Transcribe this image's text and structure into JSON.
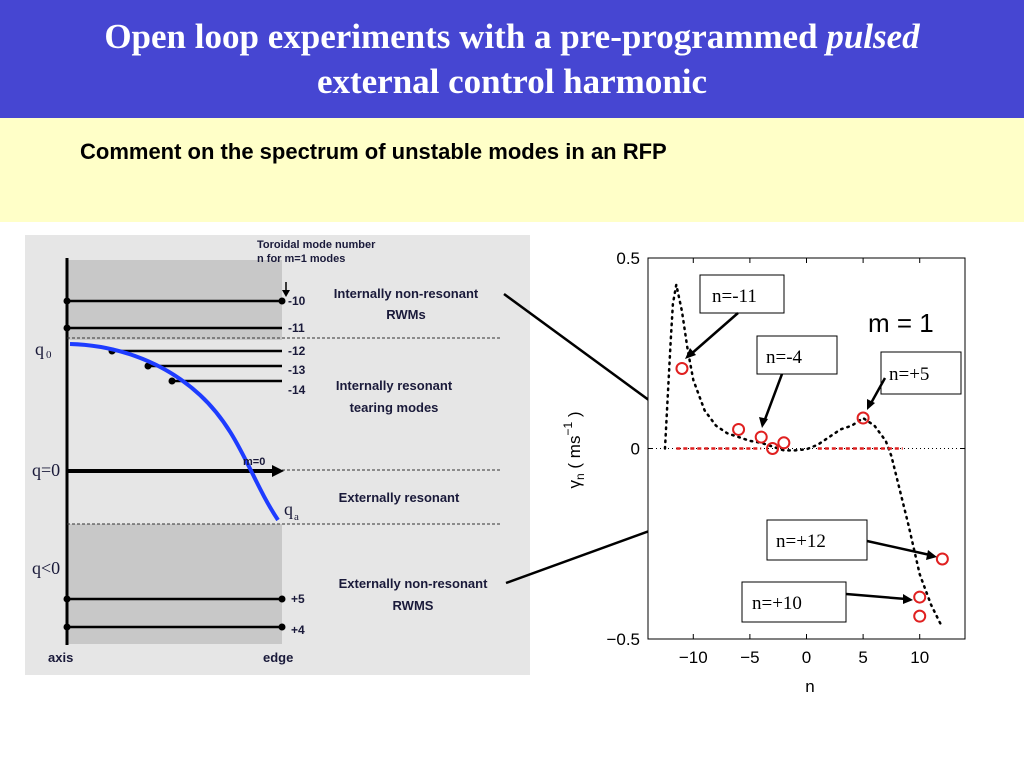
{
  "slide": {
    "title_line1_prefix": "Open loop experiments with a pre-programmed ",
    "title_line1_emph": "pulsed",
    "title_line2": "external control harmonic",
    "subtitle": "Comment on the spectrum of unstable modes in an RFP"
  },
  "left_diagram": {
    "header_line1": "Toroidal mode number",
    "header_line2": "n for m=1 modes",
    "mode_numbers": [
      "-10",
      "-11",
      "-12",
      "-13",
      "-14",
      "+5",
      "+4"
    ],
    "q_labels": {
      "q0": "q",
      "q0_sub": "0",
      "q_eq0": "q=0",
      "q_lt0": "q<0",
      "qa": "q",
      "qa_sub": "a",
      "m0": "m=0"
    },
    "regions": [
      {
        "line1": "Internally non-resonant",
        "line2": "RWMs"
      },
      {
        "line1": "Internally resonant",
        "line2": "tearing modes"
      },
      {
        "line1": "Externally resonant",
        "line2": ""
      },
      {
        "line1": "Externally non-resonant",
        "line2": "RWMS"
      }
    ],
    "axis_label": "axis",
    "edge_label": "edge",
    "colors": {
      "shade": "#c8c8c8",
      "curve": "#1e3cff",
      "text": "#1a1a3a"
    }
  },
  "chart_data": {
    "type": "scatter",
    "title": "m = 1",
    "xlabel": "n",
    "ylabel": "γ_n ( ms^-1 )",
    "xlim": [
      -14,
      14
    ],
    "ylim": [
      -0.5,
      0.5
    ],
    "xticks": [
      "−10",
      "−5",
      "0",
      "5",
      "10"
    ],
    "yticks": [
      "0.5",
      "0",
      "−0.5"
    ],
    "series": [
      {
        "kind": "theory-dotted",
        "x": [
          -12.5,
          -12.0,
          -11.8,
          -11.5,
          -11.0,
          -10.5,
          -10.0,
          -9.0,
          -8.0,
          -7.0,
          -6.0,
          -5.0,
          -4.0,
          -3.0,
          -2.0,
          -1.0,
          0.0,
          1.0,
          2.0,
          3.0,
          4.0,
          5.0,
          6.0,
          7.0,
          7.5,
          8.0,
          9.0,
          10.0,
          11.0,
          12.0
        ],
        "y": [
          0.0,
          0.28,
          0.38,
          0.43,
          0.36,
          0.26,
          0.18,
          0.1,
          0.06,
          0.04,
          0.03,
          0.02,
          0.015,
          0.005,
          -0.005,
          -0.005,
          -0.002,
          0.01,
          0.03,
          0.05,
          0.06,
          0.08,
          0.06,
          0.02,
          -0.02,
          -0.08,
          -0.2,
          -0.33,
          -0.41,
          -0.47
        ]
      },
      {
        "kind": "measured",
        "x": [
          -11,
          -6,
          -4,
          -3,
          -2,
          5,
          10,
          10,
          12
        ],
        "y": [
          0.21,
          0.05,
          0.03,
          0.0,
          0.015,
          0.08,
          -0.39,
          -0.44,
          -0.29
        ]
      },
      {
        "kind": "zero-line",
        "x": [
          -11.5,
          -4.0,
          1.0,
          8.5
        ],
        "y": [
          0,
          0,
          0,
          0
        ]
      }
    ],
    "annotations": [
      "n=-11",
      "n=-4",
      "n=+5",
      "n=+12",
      "n=+10"
    ],
    "colors": {
      "measured": "#e02020",
      "zero_line": "#e02020",
      "theory": "#000000"
    }
  }
}
